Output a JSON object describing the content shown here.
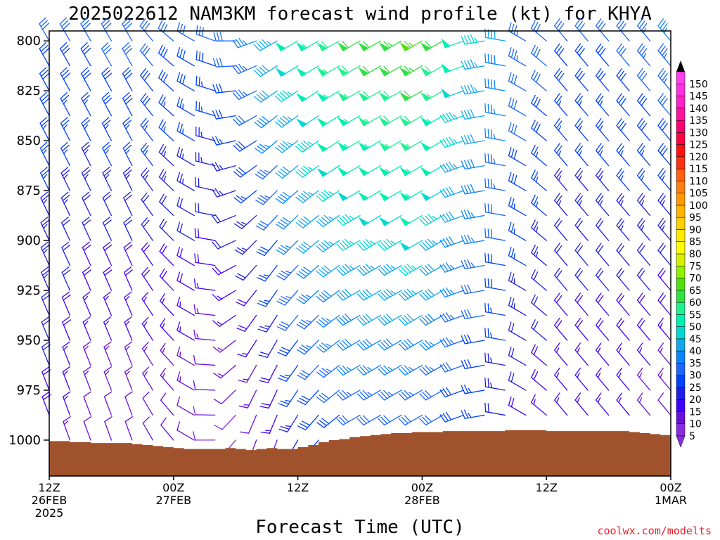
{
  "colors": {
    "terrain": "#a0522d",
    "credit": "#e8202a",
    "axis": "#000000"
  },
  "chart_data": {
    "type": "wind-barb profile",
    "title": "2025022612 NAM3KM forecast wind profile (kt) for KHYA",
    "xlabel": "Forecast Time (UTC)",
    "credit": "coolwx.com/modelts",
    "y_axis": {
      "reversed": true,
      "range": [
        1018,
        795
      ],
      "ticks": [
        800,
        825,
        850,
        875,
        900,
        925,
        950,
        975,
        1000
      ],
      "levels": [
        800,
        812.5,
        825,
        837.5,
        850,
        862.5,
        875,
        887.5,
        900,
        912.5,
        925,
        937.5,
        950,
        962.5,
        975,
        987.5,
        1000
      ]
    },
    "x_axis": {
      "range": [
        0,
        60
      ],
      "tick_hours": [
        0,
        12,
        24,
        36,
        48,
        60
      ],
      "tick_labels": [
        [
          "12Z",
          "26FEB",
          "2025"
        ],
        [
          "00Z",
          "27FEB"
        ],
        [
          "12Z"
        ],
        [
          "00Z",
          "28FEB"
        ],
        [
          "12Z"
        ],
        [
          "00Z",
          "1MAR"
        ]
      ]
    },
    "colorbar": {
      "labels": [
        "5",
        "10",
        "15",
        "20",
        "25",
        "30",
        "35",
        "40",
        "45",
        "50",
        "55",
        "60",
        "65",
        "70",
        "75",
        "80",
        "85",
        "90",
        "95",
        "100",
        "105",
        "110",
        "115",
        "120",
        "125",
        "130",
        "135",
        "140",
        "145",
        "150"
      ],
      "colors": [
        "#8a2be2",
        "#6a0fd8",
        "#4000ff",
        "#1f1fe6",
        "#0040ff",
        "#1a66ff",
        "#0a84ff",
        "#11a8f0",
        "#00d8d0",
        "#00f0b0",
        "#20f090",
        "#30e040",
        "#50e010",
        "#90f000",
        "#d8f000",
        "#ffff00",
        "#ffea00",
        "#ffd000",
        "#ffb400",
        "#ff9800",
        "#ff8010",
        "#ff6010",
        "#ff3010",
        "#ff1010",
        "#ff0040",
        "#ff0070",
        "#ff10a0",
        "#ff20c8",
        "#ff30e0",
        "#ff40f0"
      ]
    },
    "surface_pressure": [
      [
        0,
        1000.5
      ],
      [
        1,
        1000.5
      ],
      [
        2,
        1001
      ],
      [
        3,
        1001
      ],
      [
        4,
        1001.5
      ],
      [
        5,
        1001.5
      ],
      [
        6,
        1001.5
      ],
      [
        7,
        1001.5
      ],
      [
        8,
        1002
      ],
      [
        9,
        1002.5
      ],
      [
        10,
        1003
      ],
      [
        11,
        1003.5
      ],
      [
        12,
        1004
      ],
      [
        13,
        1004.5
      ],
      [
        14,
        1004.5
      ],
      [
        15,
        1004.5
      ],
      [
        16,
        1004.5
      ],
      [
        17,
        1004
      ],
      [
        18,
        1004.5
      ],
      [
        19,
        1005
      ],
      [
        20,
        1004.5
      ],
      [
        21,
        1004
      ],
      [
        22,
        1004.5
      ],
      [
        23,
        1004.5
      ],
      [
        24,
        1003.5
      ],
      [
        25,
        1002.5
      ],
      [
        26,
        1001
      ],
      [
        27,
        1000
      ],
      [
        28,
        999.5
      ],
      [
        29,
        998.5
      ],
      [
        30,
        998
      ],
      [
        31,
        997.5
      ],
      [
        32,
        997
      ],
      [
        33,
        996.5
      ],
      [
        34,
        996.5
      ],
      [
        35,
        996
      ],
      [
        36,
        996
      ],
      [
        37,
        996
      ],
      [
        38,
        995.5
      ],
      [
        39,
        995.5
      ],
      [
        40,
        995.5
      ],
      [
        41,
        995.5
      ],
      [
        42,
        995.5
      ],
      [
        43,
        995.5
      ],
      [
        44,
        995
      ],
      [
        45,
        995
      ],
      [
        46,
        995
      ],
      [
        47,
        995
      ],
      [
        48,
        995.5
      ],
      [
        49,
        995.5
      ],
      [
        50,
        995.5
      ],
      [
        51,
        995.5
      ],
      [
        52,
        995.5
      ],
      [
        53,
        995.5
      ],
      [
        54,
        995.5
      ],
      [
        55,
        995.5
      ],
      [
        56,
        996
      ],
      [
        57,
        996.5
      ],
      [
        58,
        997
      ],
      [
        59,
        997.5
      ],
      [
        60,
        998.5
      ]
    ],
    "wind": {
      "hour_step": 2,
      "hours": [
        0,
        2,
        4,
        6,
        8,
        10,
        12,
        14,
        16,
        18,
        20,
        22,
        24,
        26,
        28,
        30,
        32,
        34,
        36,
        38,
        40,
        42,
        44,
        46,
        48,
        50,
        52,
        54,
        56,
        58,
        60
      ],
      "speed_kt_at_800": [
        30,
        30,
        30,
        32,
        32,
        32,
        30,
        30,
        30,
        32,
        36,
        44,
        50,
        54,
        58,
        60,
        62,
        64,
        66,
        60,
        52,
        46,
        40,
        34,
        32,
        30,
        30,
        30,
        32,
        34,
        36
      ],
      "speed_kt_at_1000": [
        18,
        14,
        10,
        10,
        10,
        10,
        10,
        10,
        8,
        8,
        10,
        14,
        22,
        26,
        28,
        30,
        30,
        30,
        30,
        28,
        26,
        24,
        20,
        18,
        16,
        14,
        14,
        14,
        14,
        12,
        10
      ],
      "direction_deg_at_800": [
        330,
        330,
        330,
        330,
        330,
        320,
        310,
        300,
        290,
        270,
        250,
        240,
        240,
        240,
        240,
        240,
        240,
        240,
        240,
        240,
        250,
        260,
        280,
        300,
        310,
        320,
        320,
        320,
        320,
        320,
        320
      ],
      "direction_deg_at_1000": [
        340,
        340,
        340,
        340,
        340,
        330,
        320,
        300,
        270,
        220,
        200,
        200,
        210,
        220,
        230,
        240,
        240,
        240,
        240,
        240,
        250,
        260,
        280,
        300,
        310,
        320,
        320,
        320,
        320,
        320,
        320
      ]
    }
  }
}
